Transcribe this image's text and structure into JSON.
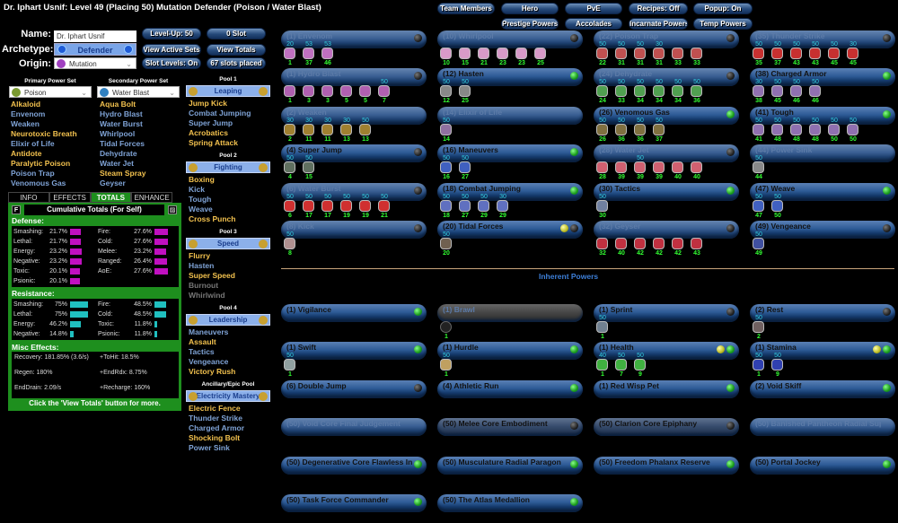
{
  "title": "Dr. Iphart Usnif: Level 49 (Placing 50) Mutation Defender (Poison / Water Blast)",
  "form": {
    "name_label": "Name:",
    "name_value": "Dr. Iphart Usnif",
    "archetype_label": "Archetype:",
    "archetype_value": "Defender",
    "origin_label": "Origin:",
    "origin_value": "Mutation"
  },
  "buttons": {
    "level_up": "Level-Up: 50",
    "slot": "0 Slot",
    "view_active_sets": "View Active Sets",
    "view_totals": "View Totals",
    "slot_levels": "Slot Levels: On",
    "slots_placed": "67 slots placed"
  },
  "top_buttons": {
    "team_members": "Team Members",
    "hero": "Hero",
    "pve": "PvE",
    "recipes": "Recipes: Off",
    "popup": "Popup: On",
    "prestige": "Prestige Powers",
    "accolades": "Accolades",
    "incarnate": "Incarnate Powers",
    "temp": "Temp Powers"
  },
  "primary": {
    "header": "Primary Power Set",
    "value": "Poison",
    "powers": [
      [
        "Alkaloid",
        "picked"
      ],
      [
        "Envenom",
        "avail"
      ],
      [
        "Weaken",
        "avail"
      ],
      [
        "Neurotoxic Breath",
        "picked"
      ],
      [
        "Elixir of Life",
        "avail"
      ],
      [
        "Antidote",
        "picked"
      ],
      [
        "Paralytic Poison",
        "picked"
      ],
      [
        "Poison Trap",
        "avail"
      ],
      [
        "Venomous Gas",
        "avail"
      ]
    ]
  },
  "secondary": {
    "header": "Secondary Power Set",
    "value": "Water Blast",
    "powers": [
      [
        "Aqua Bolt",
        "picked"
      ],
      [
        "Hydro Blast",
        "avail"
      ],
      [
        "Water Burst",
        "avail"
      ],
      [
        "Whirlpool",
        "avail"
      ],
      [
        "Tidal Forces",
        "avail"
      ],
      [
        "Dehydrate",
        "avail"
      ],
      [
        "Water Jet",
        "avail"
      ],
      [
        "Steam Spray",
        "picked"
      ],
      [
        "Geyser",
        "avail"
      ]
    ]
  },
  "pools": [
    {
      "header": "Pool 1",
      "name": "Leaping",
      "powers": [
        [
          "Jump Kick",
          "picked"
        ],
        [
          "Combat Jumping",
          "avail"
        ],
        [
          "Super Jump",
          "avail"
        ],
        [
          "Acrobatics",
          "picked"
        ],
        [
          "Spring Attack",
          "picked"
        ]
      ]
    },
    {
      "header": "Pool 2",
      "name": "Fighting",
      "powers": [
        [
          "Boxing",
          "picked"
        ],
        [
          "Kick",
          "avail"
        ],
        [
          "Tough",
          "avail"
        ],
        [
          "Weave",
          "avail"
        ],
        [
          "Cross Punch",
          "picked"
        ]
      ]
    },
    {
      "header": "Pool 3",
      "name": "Speed",
      "powers": [
        [
          "Flurry",
          "picked"
        ],
        [
          "Hasten",
          "avail"
        ],
        [
          "Super Speed",
          "picked"
        ],
        [
          "Burnout",
          "na"
        ],
        [
          "Whirlwind",
          "na"
        ]
      ]
    },
    {
      "header": "Pool 4",
      "name": "Leadership",
      "powers": [
        [
          "Maneuvers",
          "avail"
        ],
        [
          "Assault",
          "picked"
        ],
        [
          "Tactics",
          "avail"
        ],
        [
          "Vengeance",
          "avail"
        ],
        [
          "Victory Rush",
          "picked"
        ]
      ]
    },
    {
      "header": "Ancillary/Epic Pool",
      "name": "Electricity Mastery",
      "powers": [
        [
          "Electric Fence",
          "picked"
        ],
        [
          "Thunder Strike",
          "avail"
        ],
        [
          "Charged Armor",
          "avail"
        ],
        [
          "Shocking Bolt",
          "picked"
        ],
        [
          "Power Sink",
          "avail"
        ]
      ]
    }
  ],
  "tabs": [
    "INFO",
    "EFFECTS",
    "TOTALS",
    "ENHANCE"
  ],
  "totals": {
    "f_button": "F",
    "title": "Cumulative Totals (For Self)",
    "defense_header": "Defense:",
    "resistance_header": "Resistance:",
    "misc_header": "Misc Effects:",
    "footer": "Click the 'View Totals' button for more.",
    "defense_color": "#c010c0",
    "resistance_color": "#20c0c0",
    "defense": [
      [
        "Smashing:",
        "21.7%",
        21.7
      ],
      [
        "Lethal:",
        "21.7%",
        21.7
      ],
      [
        "Energy:",
        "23.2%",
        23.2
      ],
      [
        "Negative:",
        "23.2%",
        23.2
      ],
      [
        "Toxic:",
        "20.1%",
        20.1
      ],
      [
        "Psionic:",
        "20.1%",
        20.1
      ],
      [
        "Fire:",
        "27.6%",
        27.6
      ],
      [
        "Cold:",
        "27.6%",
        27.6
      ],
      [
        "Melee:",
        "23.2%",
        23.2
      ],
      [
        "Ranged:",
        "26.4%",
        26.4
      ],
      [
        "AoE:",
        "27.6%",
        27.6
      ]
    ],
    "resistance": [
      [
        "Smashing:",
        "75%",
        75
      ],
      [
        "Lethal:",
        "75%",
        75
      ],
      [
        "Energy:",
        "46.2%",
        46.2
      ],
      [
        "Negative:",
        "14.8%",
        14.8
      ],
      [
        "Fire:",
        "48.5%",
        48.5
      ],
      [
        "Cold:",
        "48.5%",
        48.5
      ],
      [
        "Toxic:",
        "11.8%",
        11.8
      ],
      [
        "Psionic:",
        "11.8%",
        11.8
      ]
    ],
    "misc": [
      "Recovery: 181.85% (3.6/s)",
      "+ToHit: 18.5%",
      "Regen: 180%",
      "+EndRdx: 8.75%",
      "EndDrain: 2.09/s",
      "+Recharge: 160%"
    ]
  },
  "inherent_header": "Inherent Powers",
  "powers": [
    {
      "name": "(1) Envenom",
      "style": "dim",
      "ind": [
        "off"
      ],
      "color": "#c070c0",
      "slots": [
        [
          "1",
          "20"
        ],
        [
          "37",
          "53"
        ],
        [
          "46",
          "53"
        ]
      ]
    },
    {
      "name": "(10) Whirlpool",
      "style": "dim",
      "ind": [
        "off"
      ],
      "color": "#d89ac8",
      "slots": [
        [
          "10",
          ""
        ],
        [
          "15",
          ""
        ],
        [
          "21",
          ""
        ],
        [
          "23",
          ""
        ],
        [
          "23",
          ""
        ],
        [
          "25",
          ""
        ]
      ]
    },
    {
      "name": "(22) Poison Trap",
      "style": "dim",
      "ind": [
        "off"
      ],
      "color": "#c05050",
      "slots": [
        [
          "22",
          "50"
        ],
        [
          "31",
          "50"
        ],
        [
          "31",
          "50"
        ],
        [
          "31",
          "30"
        ],
        [
          "33",
          ""
        ],
        [
          "33",
          ""
        ]
      ]
    },
    {
      "name": "(35) Thunder Strike",
      "style": "dim",
      "ind": [
        "off"
      ],
      "color": "#c83030",
      "slots": [
        [
          "35",
          "50"
        ],
        [
          "37",
          "50"
        ],
        [
          "43",
          "50"
        ],
        [
          "43",
          "50"
        ],
        [
          "45",
          "50"
        ],
        [
          "45",
          "30"
        ]
      ]
    },
    {
      "name": "(1) Hydro Blast",
      "style": "dim",
      "ind": [
        "off"
      ],
      "color": "#b060b0",
      "slots": [
        [
          "1",
          ""
        ],
        [
          "3",
          ""
        ],
        [
          "3",
          ""
        ],
        [
          "5",
          ""
        ],
        [
          "5",
          ""
        ],
        [
          "7",
          "50"
        ]
      ]
    },
    {
      "name": "(12) Hasten",
      "style": "norm",
      "ind": [
        "on"
      ],
      "color": "#888888",
      "slots": [
        [
          "12",
          "50"
        ],
        [
          "25",
          "50"
        ]
      ]
    },
    {
      "name": "(24) Dehydrate",
      "style": "dim",
      "ind": [
        "off"
      ],
      "color": "#50a050",
      "slots": [
        [
          "24",
          "50"
        ],
        [
          "33",
          "50"
        ],
        [
          "34",
          "50"
        ],
        [
          "34",
          "50"
        ],
        [
          "34",
          "50"
        ],
        [
          "36",
          "50"
        ]
      ]
    },
    {
      "name": "(38) Charged Armor",
      "style": "norm",
      "ind": [
        "on"
      ],
      "color": "#9070b0",
      "slots": [
        [
          "38",
          "30"
        ],
        [
          "45",
          "50"
        ],
        [
          "46",
          "50"
        ],
        [
          "46",
          "50"
        ]
      ]
    },
    {
      "name": "(2) Weaken",
      "style": "dim",
      "ind": [],
      "color": "#a08030",
      "slots": [
        [
          "2",
          "30"
        ],
        [
          "11",
          "30"
        ],
        [
          "11",
          "30"
        ],
        [
          "13",
          "30"
        ],
        [
          "13",
          "50"
        ]
      ]
    },
    {
      "name": "(14) Elixir of Life",
      "style": "dim",
      "ind": [],
      "color": "#9070a0",
      "slots": [
        [
          "14",
          "50"
        ]
      ]
    },
    {
      "name": "(26) Venomous Gas",
      "style": "norm",
      "ind": [
        "on"
      ],
      "color": "#807040",
      "slots": [
        [
          "26",
          "50"
        ],
        [
          "36",
          "50"
        ],
        [
          "36",
          "50"
        ],
        [
          "37",
          "50"
        ]
      ]
    },
    {
      "name": "(41) Tough",
      "style": "norm",
      "ind": [
        "on"
      ],
      "color": "#9070b0",
      "slots": [
        [
          "41",
          "50"
        ],
        [
          "48",
          "50"
        ],
        [
          "48",
          "50"
        ],
        [
          "48",
          "50"
        ],
        [
          "50",
          "50"
        ],
        [
          "50",
          "50"
        ]
      ]
    },
    {
      "name": "(4) Super Jump",
      "style": "norm",
      "ind": [
        "off"
      ],
      "color": "#607060",
      "slots": [
        [
          "4",
          "50"
        ],
        [
          "15",
          "50"
        ]
      ]
    },
    {
      "name": "(16) Maneuvers",
      "style": "norm",
      "ind": [
        "on"
      ],
      "color": "#4060c0",
      "slots": [
        [
          "16",
          "50"
        ],
        [
          "27",
          "50"
        ]
      ]
    },
    {
      "name": "(28) Water Jet",
      "style": "dim",
      "ind": [
        "off"
      ],
      "color": "#d06070",
      "slots": [
        [
          "28",
          ""
        ],
        [
          "39",
          ""
        ],
        [
          "39",
          "50"
        ],
        [
          "39",
          ""
        ],
        [
          "40",
          ""
        ],
        [
          "40",
          ""
        ]
      ]
    },
    {
      "name": "(44) Power Sink",
      "style": "dim",
      "ind": [],
      "color": "#888888",
      "slots": [
        [
          "44",
          "50"
        ]
      ]
    },
    {
      "name": "(6) Water Burst",
      "style": "dim",
      "ind": [
        "off"
      ],
      "color": "#d03030",
      "slots": [
        [
          "6",
          "50"
        ],
        [
          "17",
          "50"
        ],
        [
          "17",
          "50"
        ],
        [
          "19",
          "50"
        ],
        [
          "19",
          "50"
        ],
        [
          "21",
          "50"
        ]
      ]
    },
    {
      "name": "(18) Combat Jumping",
      "style": "norm",
      "ind": [
        "on"
      ],
      "color": "#6070c0",
      "slots": [
        [
          "18",
          "50"
        ],
        [
          "27",
          "50"
        ],
        [
          "29",
          "50"
        ],
        [
          "29",
          "30"
        ]
      ]
    },
    {
      "name": "(30) Tactics",
      "style": "norm",
      "ind": [
        "on"
      ],
      "color": "#7080a0",
      "slots": [
        [
          "30",
          "50"
        ]
      ]
    },
    {
      "name": "(47) Weave",
      "style": "norm",
      "ind": [
        "on"
      ],
      "color": "#4060c0",
      "slots": [
        [
          "47",
          "50"
        ],
        [
          "50",
          "50"
        ]
      ]
    },
    {
      "name": "(8) Kick",
      "style": "dim",
      "ind": [
        "off"
      ],
      "color": "#b09090",
      "slots": [
        [
          "8",
          "50"
        ]
      ]
    },
    {
      "name": "(20) Tidal Forces",
      "style": "norm",
      "ind": [
        "yel",
        "off"
      ],
      "color": "#706050",
      "slots": [
        [
          "20",
          "50"
        ]
      ]
    },
    {
      "name": "(32) Geyser",
      "style": "dim",
      "ind": [
        "off"
      ],
      "color": "#c03040",
      "slots": [
        [
          "32",
          ""
        ],
        [
          "40",
          ""
        ],
        [
          "42",
          ""
        ],
        [
          "42",
          ""
        ],
        [
          "42",
          ""
        ],
        [
          "43",
          ""
        ]
      ]
    },
    {
      "name": "(49) Vengeance",
      "style": "norm",
      "ind": [
        "off"
      ],
      "color": "#4050a0",
      "slots": [
        [
          "49",
          "50"
        ]
      ]
    }
  ],
  "inherent": [
    {
      "name": "(1) Vigilance",
      "style": "norm",
      "ind": [
        "on"
      ],
      "color": "",
      "slots": []
    },
    {
      "name": "(1) Brawl",
      "style": "grey",
      "ind": [],
      "color": "#222222",
      "slots": [
        [
          "1",
          ""
        ]
      ]
    },
    {
      "name": "(1) Sprint",
      "style": "norm",
      "ind": [
        "off"
      ],
      "color": "#708090",
      "slots": [
        [
          "1",
          "50"
        ]
      ]
    },
    {
      "name": "(2) Rest",
      "style": "norm",
      "ind": [
        "off"
      ],
      "color": "#706060",
      "slots": [
        [
          "2",
          "50"
        ]
      ]
    },
    {
      "name": "(1) Swift",
      "style": "norm",
      "ind": [
        "on"
      ],
      "color": "#90a0a0",
      "slots": [
        [
          "1",
          "50"
        ]
      ]
    },
    {
      "name": "(1) Hurdle",
      "style": "norm",
      "ind": [
        "on"
      ],
      "color": "#c0a060",
      "slots": [
        [
          "1",
          "50"
        ]
      ]
    },
    {
      "name": "(1) Health",
      "style": "norm",
      "ind": [
        "yel",
        "on"
      ],
      "color": "#40b040",
      "slots": [
        [
          "1",
          "40"
        ],
        [
          "7",
          "50"
        ],
        [
          "9",
          "50"
        ]
      ]
    },
    {
      "name": "(1) Stamina",
      "style": "norm",
      "ind": [
        "yel",
        "on"
      ],
      "color": "#3040b0",
      "slots": [
        [
          "1",
          "50"
        ],
        [
          "9",
          "50"
        ]
      ]
    },
    {
      "name": "(6) Double Jump",
      "style": "norm",
      "ind": [
        "off"
      ],
      "color": "",
      "slots": []
    },
    {
      "name": "(4) Athletic Run",
      "style": "norm",
      "ind": [
        "on"
      ],
      "color": "",
      "slots": []
    },
    {
      "name": "(1) Red Wisp Pet",
      "style": "norm",
      "ind": [
        "on"
      ],
      "color": "",
      "slots": []
    },
    {
      "name": "(2) Void Skiff",
      "style": "norm",
      "ind": [
        "on"
      ],
      "color": "",
      "slots": []
    },
    {
      "name": "(50) Void Core Final Judgement",
      "style": "dim",
      "ind": [],
      "color": "",
      "slots": []
    },
    {
      "name": "(50) Melee Core Embodiment",
      "style": "mid",
      "ind": [
        "off"
      ],
      "color": "",
      "slots": []
    },
    {
      "name": "(50) Clarion Core Epiphany",
      "style": "mid",
      "ind": [
        "off"
      ],
      "color": "",
      "slots": []
    },
    {
      "name": "(50) Banished Pantheon Radial Superio",
      "style": "dim",
      "ind": [],
      "color": "",
      "slots": []
    },
    {
      "name": "(50) Degenerative Core Flawless Interf",
      "style": "norm",
      "ind": [
        "on"
      ],
      "color": "",
      "slots": []
    },
    {
      "name": "(50) Musculature Radial Paragon",
      "style": "norm",
      "ind": [
        "on"
      ],
      "color": "",
      "slots": []
    },
    {
      "name": "(50) Freedom Phalanx Reserve",
      "style": "norm",
      "ind": [
        "on"
      ],
      "color": "",
      "slots": []
    },
    {
      "name": "(50) Portal Jockey",
      "style": "norm",
      "ind": [
        "on"
      ],
      "color": "",
      "slots": []
    },
    {
      "name": "(50) Task Force Commander",
      "style": "norm",
      "ind": [
        "on"
      ],
      "color": "",
      "slots": []
    },
    {
      "name": "(50) The Atlas Medallion",
      "style": "norm",
      "ind": [
        "on"
      ],
      "color": "",
      "slots": []
    }
  ]
}
